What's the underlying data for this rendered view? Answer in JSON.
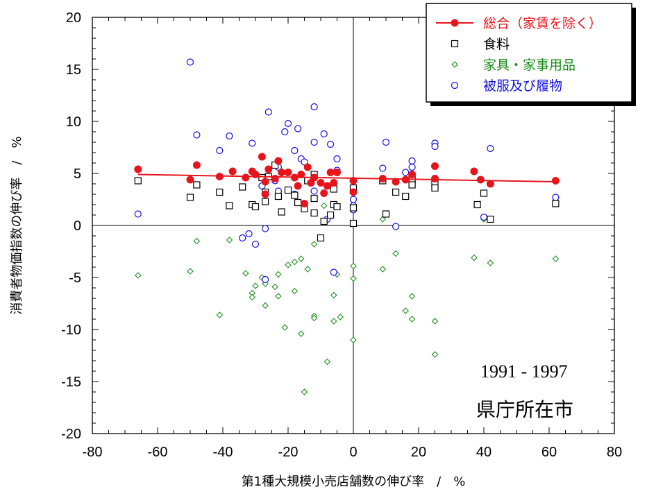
{
  "chart_data": {
    "type": "scatter",
    "xlabel": "第1種大規模小売店舗数の伸び率　/　%",
    "ylabel": "消費者物価指数の伸び率　/　%",
    "xlim": [
      -80,
      80
    ],
    "ylim": [
      -20,
      20
    ],
    "x_ticks": [
      "-80",
      "-60",
      "-40",
      "-20",
      "0",
      "20",
      "40",
      "60",
      "80"
    ],
    "y_ticks": [
      "20",
      "15",
      "10",
      "5",
      "0",
      "-5",
      "-10",
      "-15",
      "-20"
    ],
    "grid": false,
    "legend_position": "top-right",
    "annotations": {
      "period": "1991 - 1997",
      "region": "県庁所在市"
    },
    "colors": {
      "total": "#e8141c",
      "food": "#000000",
      "furniture": "#1a8c1a",
      "clothing": "#1010e0"
    },
    "trendline": {
      "series": "総合（家賃を除く）",
      "x": [
        -66,
        62
      ],
      "y": [
        4.9,
        4.2
      ]
    },
    "series": [
      {
        "name": "総合（家賃を除く）",
        "key": "total",
        "marker": "filled-circle",
        "points": [
          [
            -66,
            5.4
          ],
          [
            -50,
            4.4
          ],
          [
            -48,
            5.8
          ],
          [
            -41,
            4.7
          ],
          [
            -37,
            5.2
          ],
          [
            -33,
            4.6
          ],
          [
            -31,
            5.2
          ],
          [
            -30,
            4.9
          ],
          [
            -28,
            6.6
          ],
          [
            -27,
            4.2
          ],
          [
            -27,
            3.0
          ],
          [
            -26,
            5.4
          ],
          [
            -24,
            4.5
          ],
          [
            -23,
            6.2
          ],
          [
            -22,
            5.1
          ],
          [
            -20,
            5.1
          ],
          [
            -18,
            4.6
          ],
          [
            -17,
            3.8
          ],
          [
            -16,
            4.9
          ],
          [
            -15,
            2.1
          ],
          [
            -14,
            5.6
          ],
          [
            -13,
            4.1
          ],
          [
            -12,
            4.6
          ],
          [
            -10,
            4.1
          ],
          [
            -9,
            3.1
          ],
          [
            -8,
            3.8
          ],
          [
            -7,
            5.1
          ],
          [
            -6,
            4.1
          ],
          [
            -5,
            5.1
          ],
          [
            0,
            4.3
          ],
          [
            0,
            3.2
          ],
          [
            9,
            4.5
          ],
          [
            13,
            4.2
          ],
          [
            16,
            4.4
          ],
          [
            18,
            4.9
          ],
          [
            25,
            5.7
          ],
          [
            25,
            4.5
          ],
          [
            37,
            5.2
          ],
          [
            39,
            4.4
          ],
          [
            42,
            4.0
          ],
          [
            62,
            4.3
          ]
        ]
      },
      {
        "name": "食料",
        "key": "food",
        "marker": "open-square",
        "points": [
          [
            -66,
            4.3
          ],
          [
            -50,
            2.7
          ],
          [
            -48,
            3.9
          ],
          [
            -41,
            3.2
          ],
          [
            -38,
            1.9
          ],
          [
            -34,
            3.7
          ],
          [
            -31,
            2.0
          ],
          [
            -30,
            1.8
          ],
          [
            -28,
            4.6
          ],
          [
            -27,
            2.3
          ],
          [
            -27,
            3.2
          ],
          [
            -26,
            4.7
          ],
          [
            -24,
            5.8
          ],
          [
            -23,
            2.8
          ],
          [
            -22,
            1.3
          ],
          [
            -20,
            3.4
          ],
          [
            -18,
            2.9
          ],
          [
            -17,
            2.2
          ],
          [
            -15,
            1.6
          ],
          [
            -14,
            4.3
          ],
          [
            -12,
            4.9
          ],
          [
            -12,
            2.6
          ],
          [
            -12,
            1.2
          ],
          [
            -10,
            -1.2
          ],
          [
            -9,
            0.4
          ],
          [
            -7,
            1.0
          ],
          [
            -6,
            2.0
          ],
          [
            -6,
            3.5
          ],
          [
            -5,
            1.8
          ],
          [
            0,
            3.6
          ],
          [
            0,
            1.7
          ],
          [
            0,
            0.2
          ],
          [
            9,
            4.3
          ],
          [
            10,
            1.1
          ],
          [
            13,
            3.2
          ],
          [
            16,
            2.8
          ],
          [
            18,
            4.4
          ],
          [
            18,
            3.9
          ],
          [
            25,
            4.0
          ],
          [
            25,
            3.6
          ],
          [
            38,
            2.0
          ],
          [
            40,
            3.1
          ],
          [
            42,
            0.6
          ],
          [
            62,
            2.1
          ]
        ]
      },
      {
        "name": "家具・家事用品",
        "key": "furniture",
        "marker": "open-diamond",
        "points": [
          [
            -66,
            -4.8
          ],
          [
            -50,
            -4.4
          ],
          [
            -48,
            -1.5
          ],
          [
            -41,
            -8.6
          ],
          [
            -38,
            -1.4
          ],
          [
            -33,
            -4.6
          ],
          [
            -31,
            -6.5
          ],
          [
            -31,
            -6.9
          ],
          [
            -30,
            -5.8
          ],
          [
            -28,
            -5.0
          ],
          [
            -27,
            -7.7
          ],
          [
            -27,
            -5.6
          ],
          [
            -26,
            4.8
          ],
          [
            -24,
            -5.9
          ],
          [
            -23,
            -6.8
          ],
          [
            -23,
            -4.7
          ],
          [
            -21,
            -9.8
          ],
          [
            -20,
            -3.8
          ],
          [
            -18,
            -3.5
          ],
          [
            -18,
            -6.3
          ],
          [
            -16,
            -3.2
          ],
          [
            -16,
            -10.4
          ],
          [
            -15,
            -16.0
          ],
          [
            -14,
            -4.2
          ],
          [
            -12,
            -1.8
          ],
          [
            -12,
            -8.7
          ],
          [
            -12,
            -8.9
          ],
          [
            -9,
            1.9
          ],
          [
            -8,
            -13.1
          ],
          [
            -6,
            -6.7
          ],
          [
            -6,
            -9.2
          ],
          [
            -5,
            -4.7
          ],
          [
            -4,
            -8.8
          ],
          [
            0,
            -3.9
          ],
          [
            0,
            -5.1
          ],
          [
            0,
            -11.0
          ],
          [
            9,
            -4.2
          ],
          [
            9,
            0.6
          ],
          [
            13,
            -2.7
          ],
          [
            16,
            -8.2
          ],
          [
            18,
            -6.8
          ],
          [
            18,
            -9.0
          ],
          [
            25,
            -9.2
          ],
          [
            25,
            -12.4
          ],
          [
            37,
            -3.1
          ],
          [
            40,
            0.6
          ],
          [
            42,
            -3.6
          ],
          [
            62,
            -3.2
          ]
        ]
      },
      {
        "name": "被服及び履物",
        "key": "clothing",
        "marker": "open-circle",
        "points": [
          [
            -66,
            1.1
          ],
          [
            -50,
            15.7
          ],
          [
            -48,
            8.7
          ],
          [
            -41,
            7.2
          ],
          [
            -38,
            8.6
          ],
          [
            -34,
            -1.2
          ],
          [
            -32,
            -0.8
          ],
          [
            -31,
            7.9
          ],
          [
            -30,
            -1.8
          ],
          [
            -28,
            3.8
          ],
          [
            -27,
            -0.3
          ],
          [
            -27,
            -5.2
          ],
          [
            -26,
            10.9
          ],
          [
            -24,
            4.3
          ],
          [
            -23,
            5.6
          ],
          [
            -23,
            3.3
          ],
          [
            -21,
            9.0
          ],
          [
            -20,
            9.8
          ],
          [
            -18,
            7.2
          ],
          [
            -18,
            3.0
          ],
          [
            -17,
            9.3
          ],
          [
            -16,
            6.4
          ],
          [
            -15,
            6.1
          ],
          [
            -14,
            4.3
          ],
          [
            -12,
            11.4
          ],
          [
            -12,
            3.3
          ],
          [
            -12,
            8.0
          ],
          [
            -9,
            8.8
          ],
          [
            -8,
            0.6
          ],
          [
            -7,
            7.8
          ],
          [
            -6,
            -4.5
          ],
          [
            -5,
            5.3
          ],
          [
            -5,
            6.4
          ],
          [
            0,
            2.5
          ],
          [
            0,
            1.9
          ],
          [
            0,
            1.5
          ],
          [
            9,
            5.5
          ],
          [
            10,
            8.0
          ],
          [
            13,
            -0.1
          ],
          [
            16,
            5.1
          ],
          [
            18,
            6.2
          ],
          [
            18,
            5.6
          ],
          [
            25,
            7.9
          ],
          [
            25,
            7.6
          ],
          [
            40,
            0.8
          ],
          [
            42,
            7.4
          ],
          [
            62,
            2.7
          ]
        ]
      }
    ]
  }
}
